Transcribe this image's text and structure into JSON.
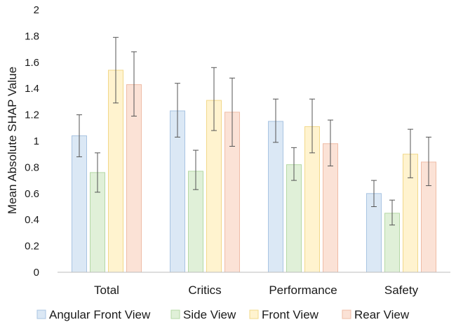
{
  "chart_data": {
    "type": "bar",
    "categories": [
      "Total",
      "Critics",
      "Performance",
      "Safety"
    ],
    "series": [
      {
        "name": "Angular Front View",
        "values": [
          1.04,
          1.23,
          1.15,
          0.6
        ],
        "err_low": [
          0.88,
          1.03,
          0.99,
          0.5
        ],
        "err_high": [
          1.2,
          1.44,
          1.32,
          0.7
        ],
        "color": "#dbe8f5",
        "stroke": "#a9c4e2"
      },
      {
        "name": "Side View",
        "values": [
          0.76,
          0.77,
          0.82,
          0.45
        ],
        "err_low": [
          0.61,
          0.63,
          0.7,
          0.36
        ],
        "err_high": [
          0.91,
          0.93,
          0.95,
          0.55
        ],
        "color": "#e0f0d8",
        "stroke": "#b5d8a6"
      },
      {
        "name": "Front View",
        "values": [
          1.54,
          1.31,
          1.11,
          0.9
        ],
        "err_low": [
          1.29,
          1.08,
          0.91,
          0.72
        ],
        "err_high": [
          1.79,
          1.56,
          1.32,
          1.09
        ],
        "color": "#fff3cf",
        "stroke": "#f2d88a"
      },
      {
        "name": "Rear View",
        "values": [
          1.43,
          1.22,
          0.98,
          0.84
        ],
        "err_low": [
          1.19,
          0.96,
          0.81,
          0.66
        ],
        "err_high": [
          1.68,
          1.48,
          1.16,
          1.03
        ],
        "color": "#fbe2d6",
        "stroke": "#efbca6"
      }
    ],
    "ylabel": "Mean Absolute SHAP Value",
    "ylim": [
      0,
      2
    ],
    "yticks": [
      "0",
      "0.2",
      "0.4",
      "0.6",
      "0.8",
      "1",
      "1.2",
      "1.4",
      "1.6",
      "1.8",
      "2"
    ],
    "grid": false,
    "legend": "bottom"
  }
}
